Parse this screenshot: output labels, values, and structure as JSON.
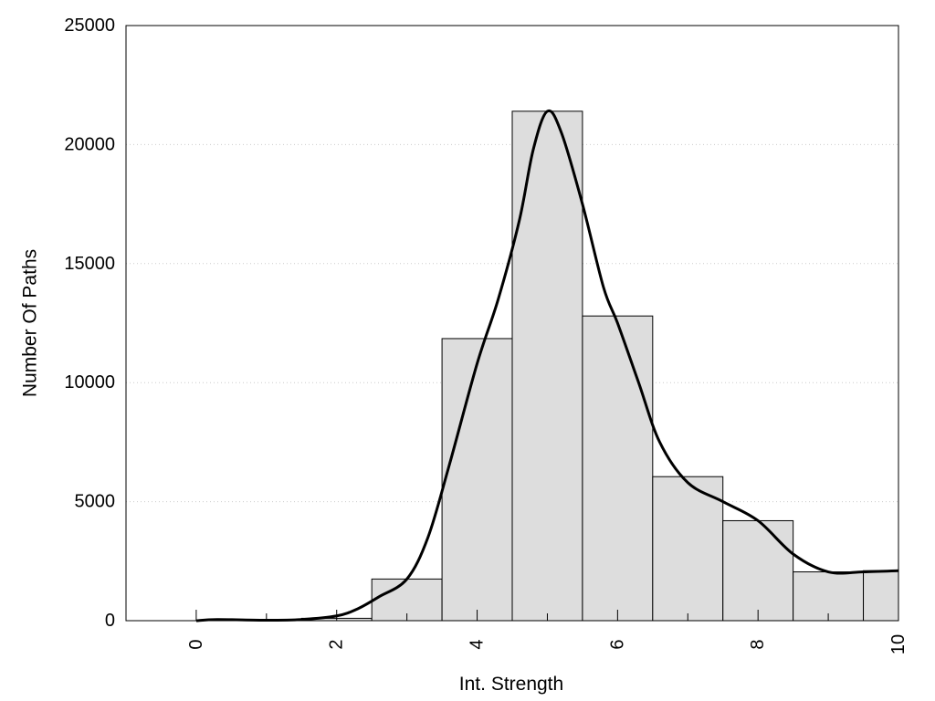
{
  "chart_data": {
    "type": "bar",
    "title": "",
    "xlabel": "Int. Strength",
    "ylabel": "Number Of Paths",
    "xlim": [
      -1,
      10
    ],
    "ylim": [
      0,
      25000
    ],
    "x_ticks": [
      0,
      2,
      4,
      6,
      8,
      10
    ],
    "x_tick_labels": [
      "0",
      "2",
      "4",
      "6",
      "8",
      "10"
    ],
    "y_ticks": [
      0,
      5000,
      10000,
      15000,
      20000,
      25000
    ],
    "y_tick_labels": [
      "0",
      "5000",
      "10000",
      "15000",
      "20000",
      "25000"
    ],
    "grid": "horizontal dotted",
    "bar_width": 1,
    "bars": [
      {
        "x": 0,
        "value": 0
      },
      {
        "x": 1,
        "value": 0
      },
      {
        "x": 2,
        "value": 100
      },
      {
        "x": 3,
        "value": 1750
      },
      {
        "x": 4,
        "value": 11850
      },
      {
        "x": 5,
        "value": 21400
      },
      {
        "x": 6,
        "value": 12800
      },
      {
        "x": 7,
        "value": 6050
      },
      {
        "x": 8,
        "value": 4200
      },
      {
        "x": 9,
        "value": 2050
      },
      {
        "x": 10,
        "value": 2100
      }
    ],
    "curve": {
      "type": "line",
      "x": [
        0,
        0.3,
        1,
        1.5,
        2,
        2.3,
        2.6,
        3,
        3.3,
        3.6,
        4,
        4.3,
        4.6,
        4.8,
        5.0,
        5.2,
        5.5,
        5.8,
        6,
        6.3,
        6.6,
        7,
        7.5,
        8,
        8.5,
        9,
        9.5,
        10
      ],
      "y": [
        0,
        50,
        20,
        50,
        200,
        500,
        1000,
        1750,
        3500,
        6500,
        10800,
        13500,
        16800,
        19800,
        21400,
        20500,
        17500,
        14000,
        12500,
        10000,
        7500,
        5800,
        5000,
        4200,
        2800,
        2050,
        2050,
        2100
      ]
    },
    "colors": {
      "bar_fill": "#dddddd",
      "bar_stroke": "#000000",
      "curve": "#000000",
      "grid": "#cccccc"
    }
  }
}
